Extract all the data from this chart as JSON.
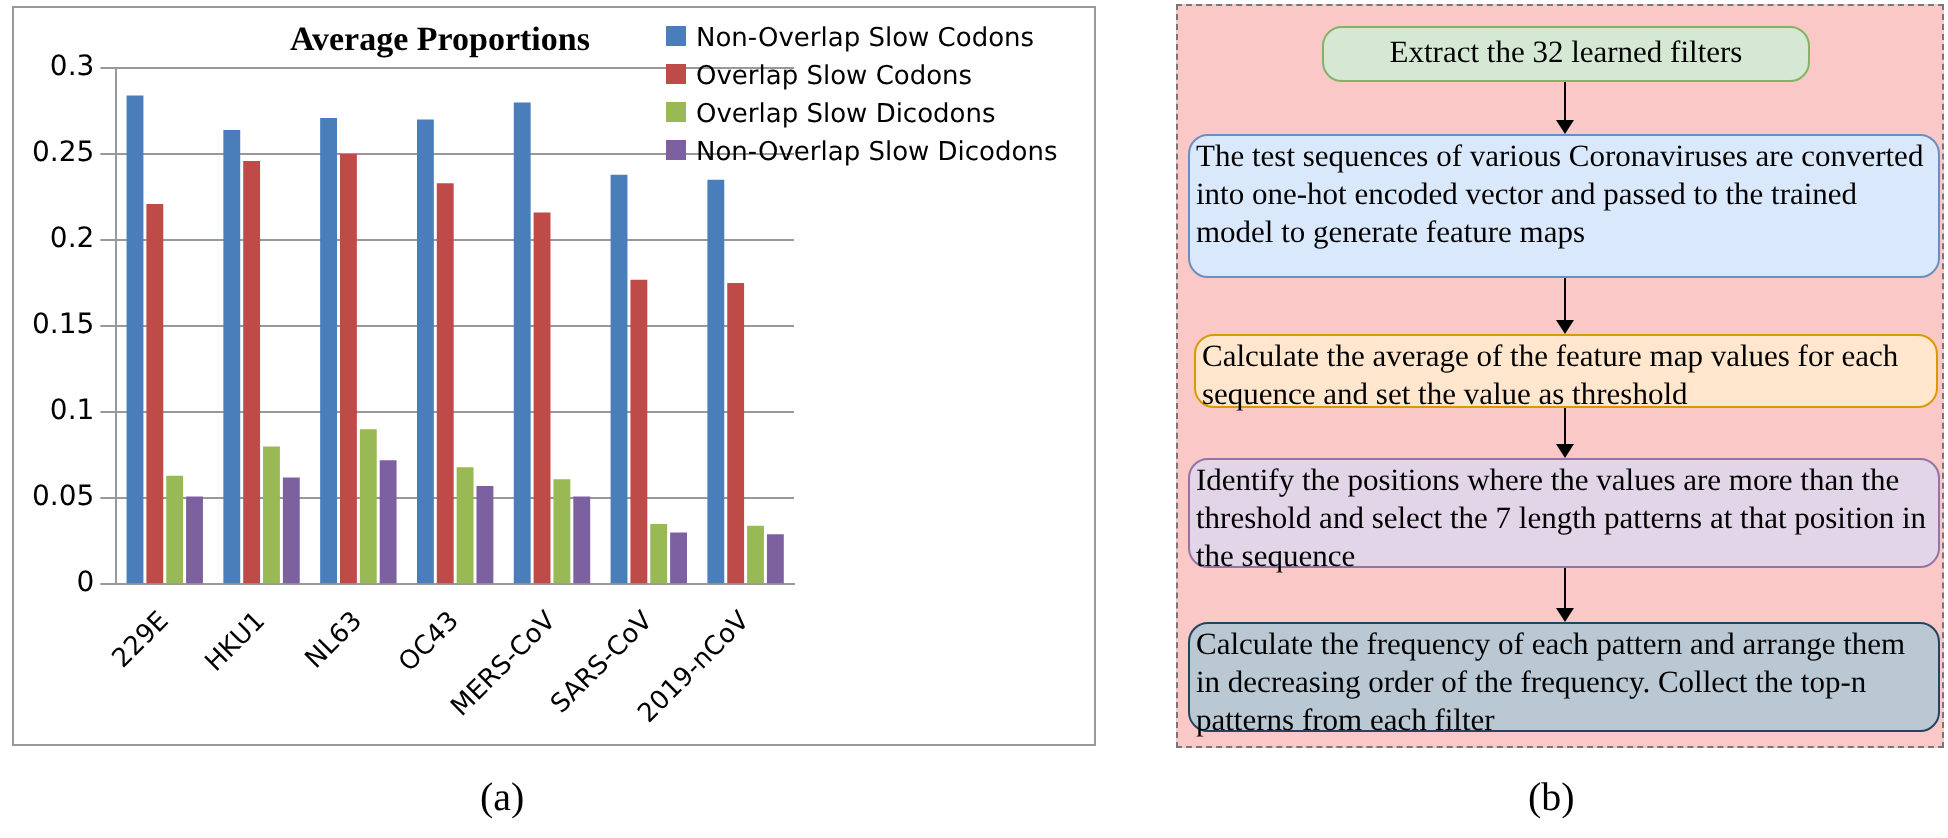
{
  "chart_data": [
    {
      "type": "bar",
      "title": "Average Proportions",
      "categories": [
        "229E",
        "HKU1",
        "NL63",
        "OC43",
        "MERS-CoV",
        "SARS-CoV",
        "2019-nCoV"
      ],
      "series": [
        {
          "name": "Non-Overlap Slow Codons",
          "color": "#4a7ebb",
          "values": [
            0.284,
            0.264,
            0.271,
            0.27,
            0.28,
            0.238,
            0.235
          ]
        },
        {
          "name": "Overlap Slow Codons",
          "color": "#be4b48",
          "values": [
            0.221,
            0.246,
            0.25,
            0.233,
            0.216,
            0.177,
            0.175
          ]
        },
        {
          "name": "Overlap Slow Dicodons",
          "color": "#98b954",
          "values": [
            0.063,
            0.08,
            0.09,
            0.068,
            0.061,
            0.035,
            0.034
          ]
        },
        {
          "name": "Non-Overlap Slow Dicodons",
          "color": "#7d60a0",
          "values": [
            0.051,
            0.062,
            0.072,
            0.057,
            0.051,
            0.03,
            0.029
          ]
        }
      ],
      "ylim": [
        0,
        0.3
      ],
      "yticks": [
        0,
        0.05,
        0.1,
        0.15,
        0.2,
        0.25,
        0.3
      ],
      "grid": "y",
      "legend": "top right",
      "annotations": [
        "(a)"
      ]
    },
    {
      "type": "other",
      "annotations": [
        "Extract the 32 learned filters",
        "The test sequences of various Coronaviruses are converted into one-hot encoded vector and passed to the trained model to generate feature maps",
        "Calculate the average of the feature map values for each sequence and set the value as threshold",
        "Identify the positions where the values are more than the threshold and select the 7 length patterns at that position in the sequence",
        "Calculate the frequency of each pattern and arrange them in decreasing order of the frequency. Collect the top-n patterns from each filter",
        "(b)"
      ]
    }
  ]
}
